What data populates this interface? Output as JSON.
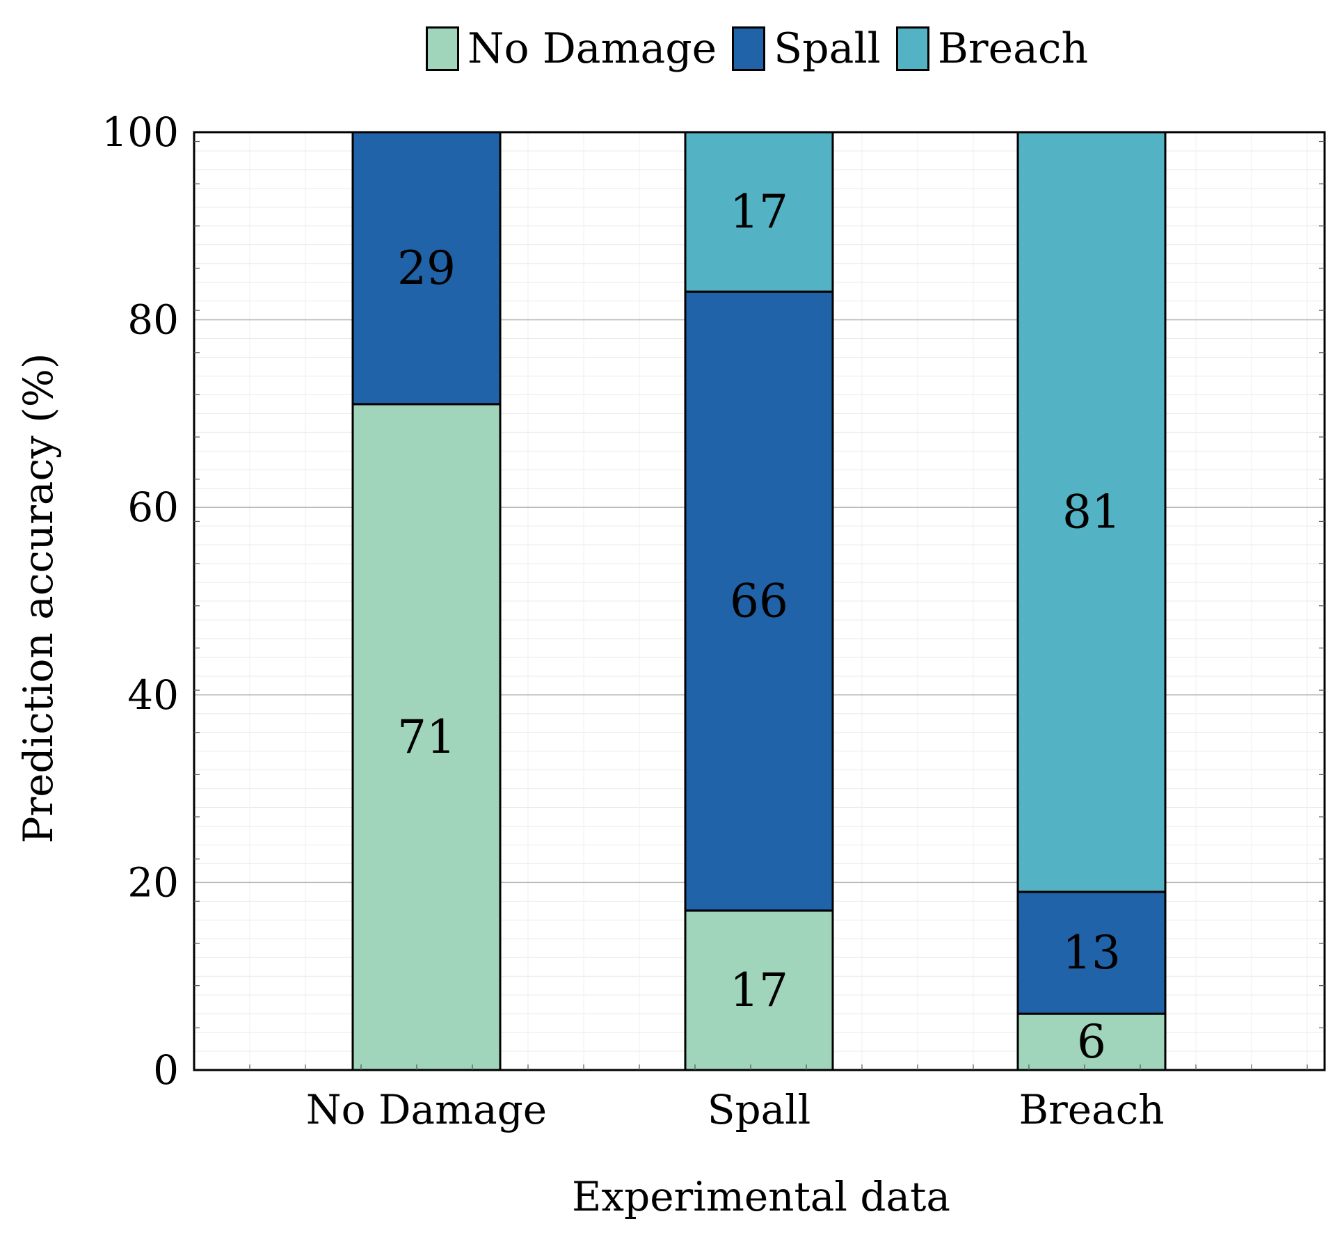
{
  "chart_data": {
    "type": "bar",
    "stacked": true,
    "title": "",
    "xlabel": "Experimental data",
    "ylabel": "Prediction accuracy (%)",
    "ylim": [
      0,
      100
    ],
    "yticks": [
      0,
      20,
      40,
      60,
      80,
      100
    ],
    "grid": true,
    "legend_position": "top-center",
    "categories": [
      "No Damage",
      "Spall",
      "Breach"
    ],
    "series": [
      {
        "name": "No Damage",
        "color": "#a0d5bc",
        "values": [
          71,
          17,
          6
        ]
      },
      {
        "name": "Spall",
        "color": "#2163a8",
        "values": [
          29,
          66,
          13
        ]
      },
      {
        "name": "Breach",
        "color": "#54b2c5",
        "values": [
          0,
          17,
          81
        ]
      }
    ]
  }
}
